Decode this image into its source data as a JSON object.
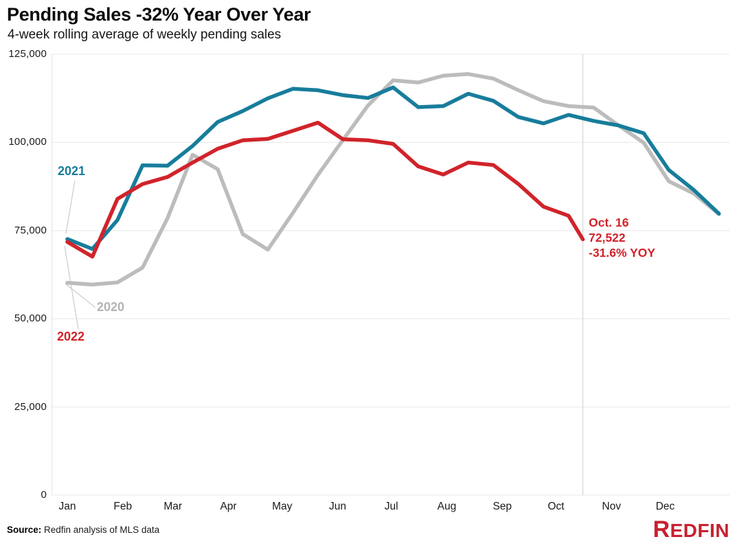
{
  "header": {
    "title": "Pending Sales -32% Year Over Year",
    "subtitle": "4-week rolling average of weekly pending sales"
  },
  "chart_data": {
    "type": "line",
    "title": "Pending Sales -32% Year Over Year",
    "subtitle": "4-week rolling average of weekly pending sales",
    "ylim": [
      0,
      125000
    ],
    "grid": true,
    "legend_position": "inline-labels-left",
    "y_axis": {
      "tick_labels": [
        "125,000",
        "100,000",
        "75,000",
        "50,000",
        "25,000",
        "0"
      ],
      "tick_values": [
        125000,
        100000,
        75000,
        50000,
        25000,
        0
      ]
    },
    "x_axis": {
      "months": [
        "Jan",
        "Feb",
        "Mar",
        "Apr",
        "May",
        "Jun",
        "Jul",
        "Aug",
        "Sep",
        "Oct",
        "Nov",
        "Dec"
      ],
      "month_start_days": [
        0,
        31,
        59,
        90,
        120,
        151,
        181,
        212,
        243,
        273,
        304,
        334
      ]
    },
    "sample_dates": [
      "Jan 1",
      "Jan 15",
      "Jan 29",
      "Feb 12",
      "Feb 26",
      "Mar 12",
      "Mar 26",
      "Apr 9",
      "Apr 23",
      "May 7",
      "May 21",
      "Jun 4",
      "Jun 18",
      "Jul 2",
      "Jul 16",
      "Jul 30",
      "Aug 13",
      "Aug 27",
      "Sep 10",
      "Sep 24",
      "Oct 8",
      "Oct 22",
      "Nov 5",
      "Nov 19",
      "Dec 3",
      "Dec 17",
      "Dec 31"
    ],
    "sample_days": [
      0,
      14,
      28,
      42,
      56,
      70,
      84,
      98,
      112,
      126,
      140,
      154,
      168,
      182,
      196,
      210,
      224,
      238,
      252,
      266,
      280,
      294,
      308,
      322,
      336,
      350,
      364
    ],
    "series": [
      {
        "name": "2020",
        "color": "#bcbcbc",
        "values": [
          60200,
          59700,
          60300,
          64500,
          78500,
          96500,
          92400,
          74000,
          69600,
          80000,
          90800,
          100700,
          110500,
          117600,
          117000,
          118900,
          119400,
          118100,
          114800,
          111700,
          110300,
          109900,
          104800,
          99900,
          89000,
          85500,
          79700
        ]
      },
      {
        "name": "2021",
        "color": "#177d9b",
        "values": [
          72600,
          69800,
          78000,
          93500,
          93400,
          99000,
          105800,
          108900,
          112500,
          115200,
          114800,
          113400,
          112600,
          115600,
          110000,
          110300,
          113800,
          111800,
          107200,
          105400,
          107800,
          106100,
          104800,
          102600,
          92200,
          86500,
          79800
        ]
      },
      {
        "name": "2022",
        "color": "#d1232a",
        "days": [
          0,
          14,
          28,
          42,
          56,
          70,
          84,
          98,
          112,
          126,
          140,
          154,
          168,
          182,
          196,
          210,
          224,
          238,
          252,
          266,
          280,
          288
        ],
        "dates": [
          "Jan 1",
          "Jan 15",
          "Jan 29",
          "Feb 12",
          "Feb 26",
          "Mar 12",
          "Mar 26",
          "Apr 9",
          "Apr 23",
          "May 7",
          "May 21",
          "Jun 4",
          "Jun 18",
          "Jul 2",
          "Jul 16",
          "Jul 30",
          "Aug 13",
          "Aug 27",
          "Sep 10",
          "Sep 24",
          "Oct 8",
          "Oct 16"
        ],
        "values": [
          71800,
          67600,
          84000,
          88200,
          90200,
          94300,
          98200,
          100600,
          101000,
          103300,
          105600,
          100900,
          100600,
          99600,
          93200,
          90900,
          94300,
          93600,
          88200,
          81800,
          79200,
          72522
        ]
      }
    ],
    "marker_day": 288,
    "annotations": [
      {
        "text": "Oct. 16 72,522 -31.6% YOY",
        "series": "2022",
        "day": 288,
        "value": 72522
      }
    ]
  },
  "series_labels": [
    {
      "id": "2021",
      "text": "2021",
      "x": 84,
      "y": 239,
      "connector": [
        109,
        263,
        96,
        340
      ]
    },
    {
      "id": "2020",
      "text": "2020",
      "x": 141,
      "y": 437,
      "connector": [
        95,
        413,
        139,
        448
      ]
    },
    {
      "id": "2022",
      "text": "2022",
      "x": 83,
      "y": 480,
      "connector": [
        94,
        358,
        114,
        479
      ]
    }
  ],
  "annotation": {
    "line1": "Oct. 16",
    "line2": "72,522",
    "line3": "-31.6% YOY"
  },
  "footer": {
    "source_label": "Source:",
    "source_text": " Redfin analysis of MLS data",
    "logo_first": "R",
    "logo_rest": "EDFIN"
  },
  "colors": {
    "teal_2021": "#177d9b",
    "gray_2020": "#bcbcbc",
    "red_2022": "#d1232a",
    "gridline": "#ededed",
    "marker_line": "#d8d8d8",
    "logo_red": "#c7212f"
  }
}
